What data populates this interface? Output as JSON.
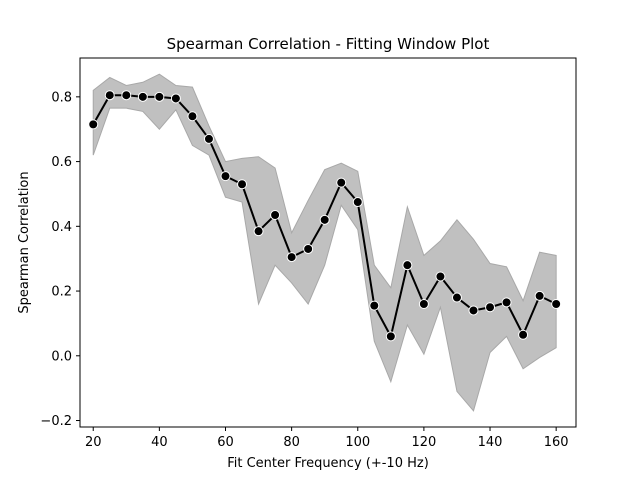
{
  "chart_data": {
    "type": "line",
    "title": "Spearman Correlation - Fitting Window Plot",
    "xlabel": "Fit Center Frequency (+-10 Hz)",
    "ylabel": "Spearman Correlation",
    "xlim": [
      16,
      166
    ],
    "ylim": [
      -0.22,
      0.92
    ],
    "xticks": [
      20,
      40,
      60,
      80,
      100,
      120,
      140,
      160
    ],
    "yticks": [
      -0.2,
      0.0,
      0.2,
      0.4,
      0.6,
      0.8
    ],
    "grid": false,
    "legend": false,
    "colors": {
      "line": "#000000",
      "marker_edge": "#ffffff",
      "band_fill": "#c0c0c0",
      "band_edge": "#a8a8a8"
    },
    "x": [
      20,
      25,
      30,
      35,
      40,
      45,
      50,
      55,
      60,
      65,
      70,
      75,
      80,
      85,
      90,
      95,
      100,
      105,
      110,
      115,
      120,
      125,
      130,
      135,
      140,
      145,
      150,
      155,
      160
    ],
    "series": [
      {
        "values": [
          0.715,
          0.805,
          0.805,
          0.8,
          0.8,
          0.795,
          0.74,
          0.67,
          0.555,
          0.53,
          0.385,
          0.435,
          0.305,
          0.33,
          0.42,
          0.535,
          0.475,
          0.155,
          0.06,
          0.28,
          0.16,
          0.245,
          0.18,
          0.14,
          0.15,
          0.165,
          0.065,
          0.185,
          0.16
        ],
        "upper": [
          0.82,
          0.86,
          0.835,
          0.845,
          0.87,
          0.835,
          0.83,
          0.71,
          0.6,
          0.61,
          0.615,
          0.58,
          0.38,
          0.48,
          0.575,
          0.595,
          0.57,
          0.28,
          0.21,
          0.46,
          0.31,
          0.355,
          0.42,
          0.36,
          0.285,
          0.275,
          0.17,
          0.32,
          0.31
        ],
        "lower": [
          0.62,
          0.765,
          0.765,
          0.755,
          0.7,
          0.76,
          0.65,
          0.62,
          0.49,
          0.475,
          0.16,
          0.28,
          0.225,
          0.16,
          0.28,
          0.465,
          0.39,
          0.045,
          -0.08,
          0.095,
          0.005,
          0.15,
          -0.11,
          -0.17,
          0.01,
          0.06,
          -0.04,
          -0.005,
          0.025
        ]
      }
    ]
  }
}
